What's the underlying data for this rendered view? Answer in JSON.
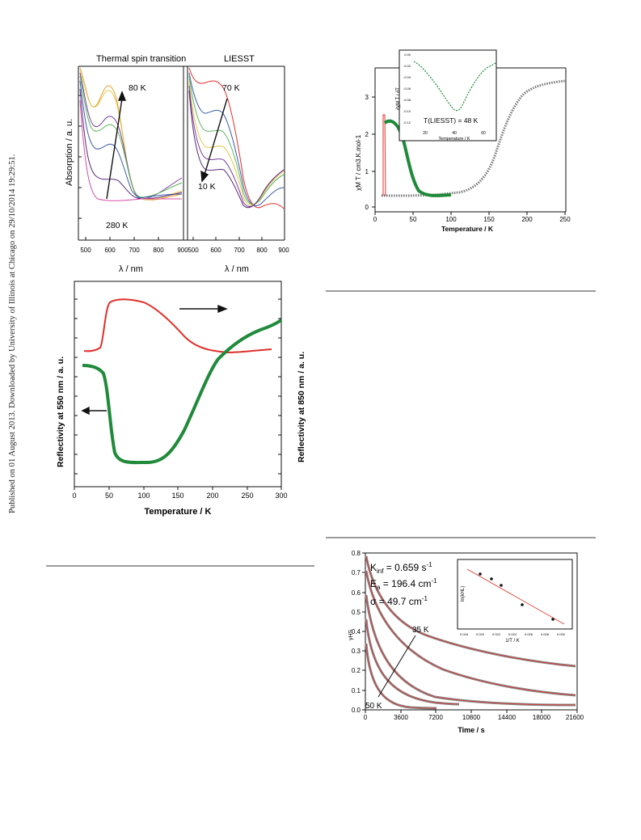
{
  "margin_note": "Published on 01 August 2013. Downloaded by University of Illinois at Chicago on 29/10/2014 19:29:51.",
  "fig_a": {
    "left_title": "Thermal spin transition",
    "right_title": "LIESST",
    "ylabel": "Absorption / a. u.",
    "xlabel_left": "λ / nm",
    "xlabel_right": "λ / nm",
    "ticks": [
      "500",
      "600",
      "700",
      "800",
      "900"
    ],
    "ann": {
      "k80": "80 K",
      "k280": "280 K",
      "k70": "70 K",
      "k10": "10 K"
    }
  },
  "fig_b": {
    "ylabel": "χM T / cm3.K.mol-1",
    "xlabel": "Temperature / K",
    "inset_ylabel": "∂χM T / ∂T",
    "inset_xlabel": "Temperature / K",
    "inset_note": "T(LIESST) = 48 K",
    "xticks": [
      "0",
      "50",
      "100",
      "150",
      "200",
      "250"
    ],
    "yticks": [
      "0",
      "1",
      "2",
      "3"
    ],
    "inset_xticks": [
      "20",
      "40",
      "60"
    ],
    "inset_yticks": [
      "0.00",
      "-0.02",
      "-0.04",
      "-0.06",
      "-0.08",
      "-0.10",
      "-0.12"
    ]
  },
  "fig_c": {
    "ylabel_left": "Reflectivity at 550 nm / a. u.",
    "ylabel_right": "Reflectivity at 850 nm / a. u.",
    "xlabel": "Temperature / K",
    "xticks": [
      "0",
      "50",
      "100",
      "150",
      "200",
      "250",
      "300"
    ]
  },
  "fig_d": {
    "params": {
      "kinf": "K",
      "kinf_sub": "inf",
      "kinf_val": " = 0.659 s",
      "kinf_sup": "-1",
      "ea": "E",
      "ea_sub": "a",
      "ea_val": " = 196.4 cm",
      "ea_sup": "-1",
      "sigma": "σ = 49.7 cm",
      "sigma_sup": "-1"
    },
    "ylabel": "γHS",
    "xlabel": "Time / s",
    "inset_ylabel": "ln(kHL)",
    "inset_xlabel": "1/T  /  K",
    "inset_xticks": [
      "0.018",
      "0.020",
      "0.022",
      "0.024",
      "0.026",
      "0.028",
      "0.030"
    ],
    "ann": {
      "k35": "35 K",
      "k50": "50 K"
    },
    "xticks": [
      "0",
      "3600",
      "7200",
      "10800",
      "14400",
      "18000",
      "21600"
    ],
    "yticks": [
      "0.0",
      "0.1",
      "0.2",
      "0.3",
      "0.4",
      "0.5",
      "0.6",
      "0.7",
      "0.8"
    ]
  },
  "colors": {
    "green": "#1f8a3a",
    "red": "#e0302a",
    "grey": "#9a9a9a"
  }
}
